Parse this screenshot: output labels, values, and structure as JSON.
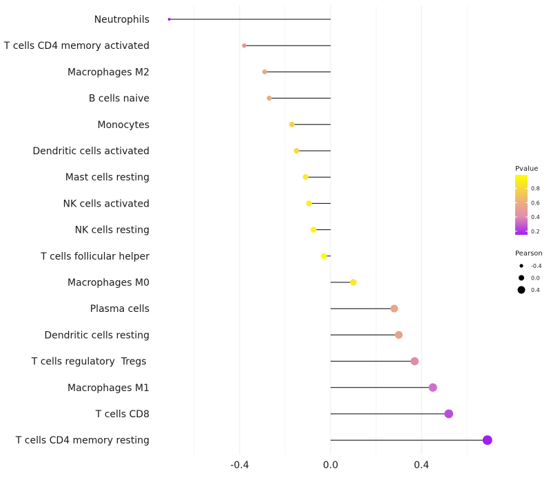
{
  "chart_data": {
    "type": "lollipop",
    "title": "",
    "xlabel": "",
    "ylabel": "",
    "xlim": [
      -0.7,
      0.75
    ],
    "x_ticks": [
      -0.4,
      0.0,
      0.4
    ],
    "x_tick_labels": [
      "-0.4",
      "0.0",
      "0.4"
    ],
    "grid": true,
    "legend_position": "right",
    "categories": [
      "Neutrophils",
      "T cells CD4 memory activated",
      "Macrophages M2",
      "B cells naive",
      "Monocytes",
      "Dendritic cells activated",
      "Mast cells resting",
      "NK cells activated",
      "NK cells resting",
      "T cells follicular helper",
      "Macrophages M0",
      "Plasma cells",
      "Dendritic cells resting",
      "T cells regulatory  Tregs ",
      "Macrophages M1",
      "T cells CD8",
      "T cells CD4 memory resting"
    ],
    "pearson": [
      -0.71,
      -0.38,
      -0.29,
      -0.27,
      -0.17,
      -0.15,
      -0.11,
      -0.095,
      -0.075,
      -0.03,
      0.1,
      0.28,
      0.3,
      0.37,
      0.45,
      0.52,
      0.69
    ],
    "pvalue": [
      0.01,
      0.6,
      0.7,
      0.72,
      0.85,
      0.87,
      0.92,
      0.93,
      0.95,
      0.99,
      0.92,
      0.7,
      0.68,
      0.55,
      0.42,
      0.3,
      0.15
    ],
    "color_legend": {
      "title": "Pvalue",
      "ticks": [
        0.8,
        0.6,
        0.4,
        0.2
      ],
      "tick_labels": [
        "0.8",
        "0.6",
        "0.4",
        "0.2"
      ],
      "range": [
        0.15,
        0.99
      ],
      "low_color": "#a020f0",
      "mid_color": "#e89a9a",
      "high_color": "#ffff00"
    },
    "size_legend": {
      "title": "Pearson",
      "values": [
        -0.4,
        0.0,
        0.4
      ],
      "labels": [
        "-0.4",
        "0.0",
        "0.4"
      ]
    },
    "colors": {
      "stem": "#000000",
      "grid": "#ebebeb"
    }
  }
}
